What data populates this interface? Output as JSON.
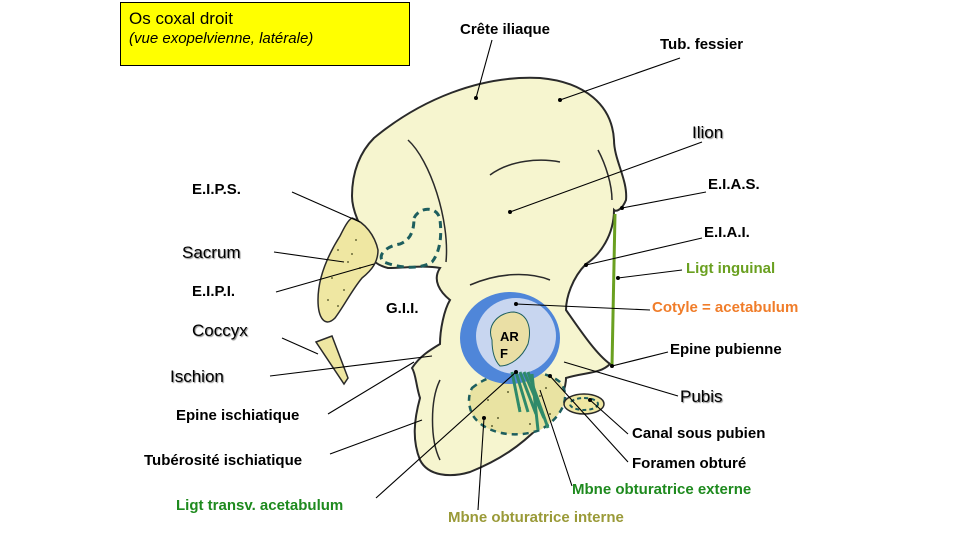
{
  "title": {
    "main": "Os coxal droit",
    "subtitle": "(vue exopelvienne, latérale)"
  },
  "labels": {
    "crete_iliaque": "Crête iliaque",
    "tub_fessier": "Tub. fessier",
    "ilion": "Ilion",
    "eias": "E.I.A.S.",
    "eiai": "E.I.A.I.",
    "ligt_inguinal": "Ligt inguinal",
    "cotyle": "Cotyle = acetabulum",
    "epine_pubienne": "Epine pubienne",
    "pubis": "Pubis",
    "canal_sous_pubien": "Canal sous pubien",
    "foramen_obture": "Foramen obturé",
    "mbne_obt_externe": "Mbne obturatrice externe",
    "mbne_obt_interne": "Mbne obturatrice interne",
    "ligt_transv": "Ligt transv. acetabulum",
    "tuberosite": "Tubérosité ischiatique",
    "epine_ischiatique": "Epine ischiatique",
    "ischion": "Ischion",
    "coccyx": "Coccyx",
    "eipi": "E.I.P.I.",
    "sacrum": "Sacrum",
    "eips": "E.I.P.S.",
    "gii": "G.I.I.",
    "arf": "AR F"
  },
  "colors": {
    "bone": "#f6f5cf",
    "sacrum": "#efe7a2",
    "acetabulum_blue": "#4f86d9",
    "acetabulum_pale": "#c8d6f0",
    "membrane_dash": "#1d5e5e",
    "ligament": "#2f8a6a",
    "inguinal": "#6aa020",
    "title_bg": "#ffff00"
  }
}
